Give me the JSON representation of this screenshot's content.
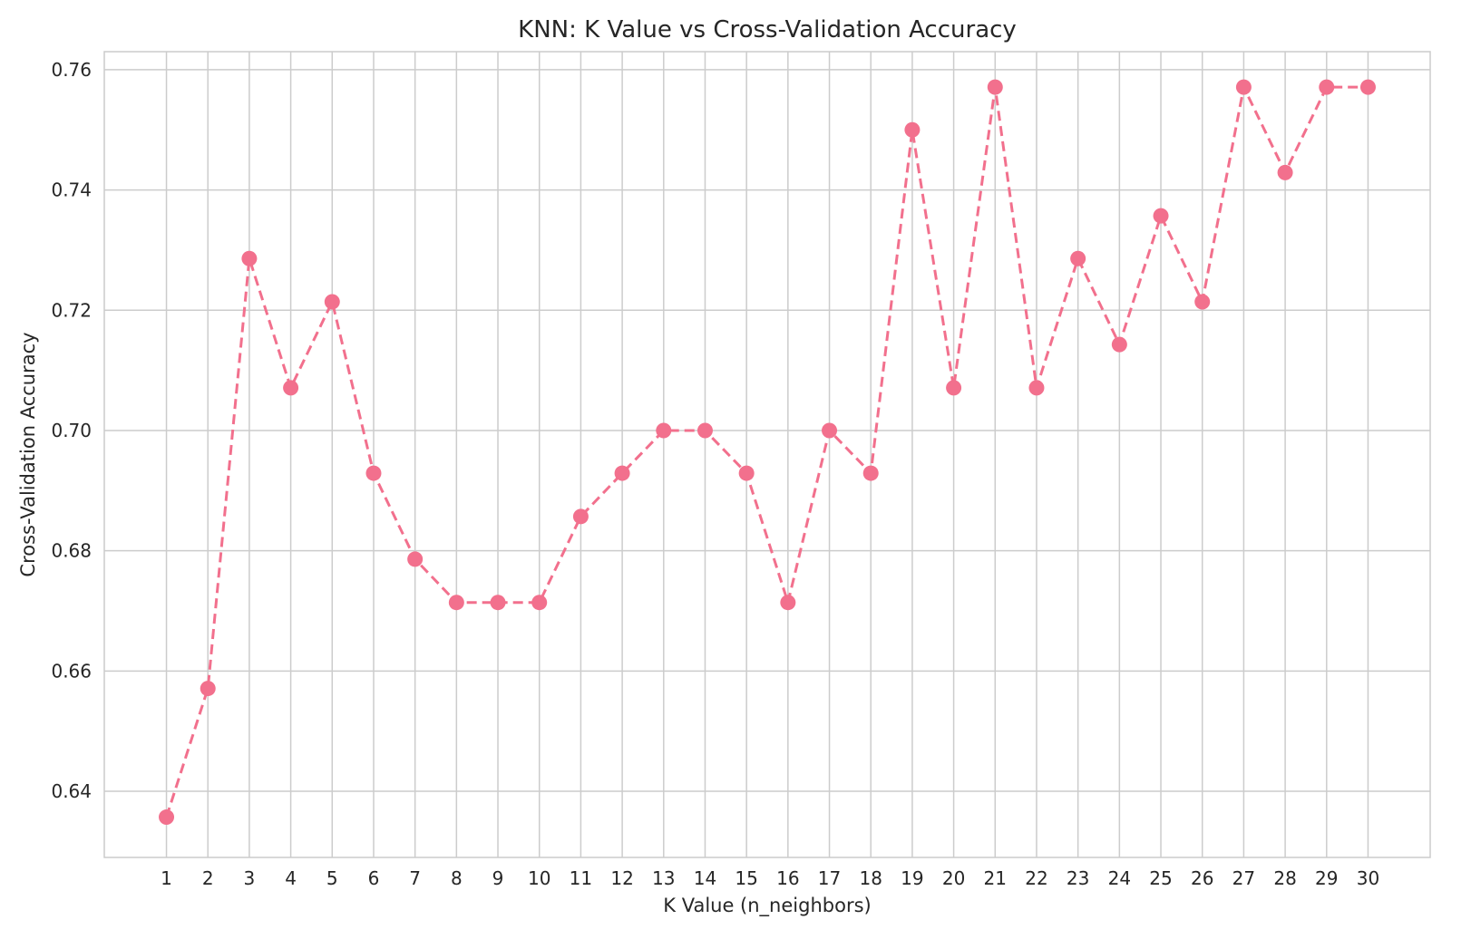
{
  "chart_data": {
    "type": "line",
    "title": "KNN: K Value vs Cross-Validation Accuracy",
    "xlabel": "K Value (n_neighbors)",
    "ylabel": "Cross-Validation Accuracy",
    "xlim": [
      -0.5,
      31.5
    ],
    "ylim": [
      0.629,
      0.763
    ],
    "xticks": [
      1,
      2,
      3,
      4,
      5,
      6,
      7,
      8,
      9,
      10,
      11,
      12,
      13,
      14,
      15,
      16,
      17,
      18,
      19,
      20,
      21,
      22,
      23,
      24,
      25,
      26,
      27,
      28,
      29,
      30
    ],
    "yticks": [
      0.64,
      0.66,
      0.68,
      0.7,
      0.72,
      0.74,
      0.76
    ],
    "ytick_labels": [
      "0.64",
      "0.66",
      "0.68",
      "0.70",
      "0.72",
      "0.74",
      "0.76"
    ],
    "grid": true,
    "line_style": "dashed",
    "marker": "circle",
    "color": "#f2708d",
    "series": [
      {
        "x": [
          1,
          2,
          3,
          4,
          5,
          6,
          7,
          8,
          9,
          10,
          11,
          12,
          13,
          14,
          15,
          16,
          17,
          18,
          19,
          20,
          21,
          22,
          23,
          24,
          25,
          26,
          27,
          28,
          29,
          30
        ],
        "values": [
          0.6357,
          0.6571,
          0.7286,
          0.7071,
          0.7214,
          0.6929,
          0.6786,
          0.6714,
          0.6714,
          0.6714,
          0.6857,
          0.6929,
          0.7,
          0.7,
          0.6929,
          0.6714,
          0.7,
          0.6929,
          0.75,
          0.7071,
          0.7571,
          0.7071,
          0.7286,
          0.7143,
          0.7357,
          0.7214,
          0.7571,
          0.7429,
          0.7571,
          0.7571
        ]
      }
    ]
  }
}
